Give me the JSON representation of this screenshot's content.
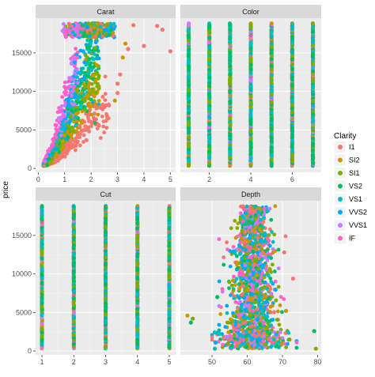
{
  "chart_data": {
    "type": "scatter",
    "facets": [
      {
        "strip": "Carat",
        "x_variable": "carat",
        "xlim": [
          -0.1,
          5.2
        ],
        "x_ticks": [
          "0",
          "1",
          "2",
          "3",
          "4",
          "5"
        ]
      },
      {
        "strip": "Color",
        "x_variable": "color",
        "xlim": [
          0.6,
          7.4
        ],
        "x_ticks": [
          "2",
          "4",
          "6"
        ]
      },
      {
        "strip": "Cut",
        "x_variable": "cut",
        "xlim": [
          0.8,
          5.2
        ],
        "x_ticks": [
          "1",
          "2",
          "3",
          "4",
          "5"
        ]
      },
      {
        "strip": "Depth",
        "x_variable": "depth",
        "xlim": [
          41,
          81
        ],
        "x_ticks": [
          "50",
          "60",
          "70",
          "80"
        ]
      }
    ],
    "y_axis": {
      "label": "price",
      "ylim": [
        -500,
        19500
      ],
      "ticks": [
        "0",
        "5000",
        "10000",
        "15000"
      ],
      "min": 326,
      "max": 18823
    },
    "legend": {
      "title": "Clarity",
      "position": "right",
      "entries": [
        "I1",
        "SI2",
        "SI1",
        "VS2",
        "VS1",
        "VVS2",
        "VVS1",
        "IF"
      ]
    },
    "series_colors": [
      "#F8766D",
      "#CD9600",
      "#7CAE00",
      "#00BE67",
      "#00BFC4",
      "#00A9FF",
      "#C77CFF",
      "#FF61CC"
    ],
    "color_levels": [
      1,
      2,
      3,
      4,
      5,
      6,
      7
    ],
    "cut_levels": [
      1,
      2,
      3,
      4,
      5
    ],
    "carat_price_fit": [
      [
        0.2,
        350
      ],
      [
        0.5,
        1500
      ],
      [
        1.0,
        5000
      ],
      [
        1.5,
        9500
      ],
      [
        2.0,
        14000
      ],
      [
        2.5,
        17000
      ]
    ],
    "depth_range": {
      "core": [
        55,
        68
      ],
      "outliers": [
        43,
        44,
        79
      ]
    },
    "grid": true
  }
}
